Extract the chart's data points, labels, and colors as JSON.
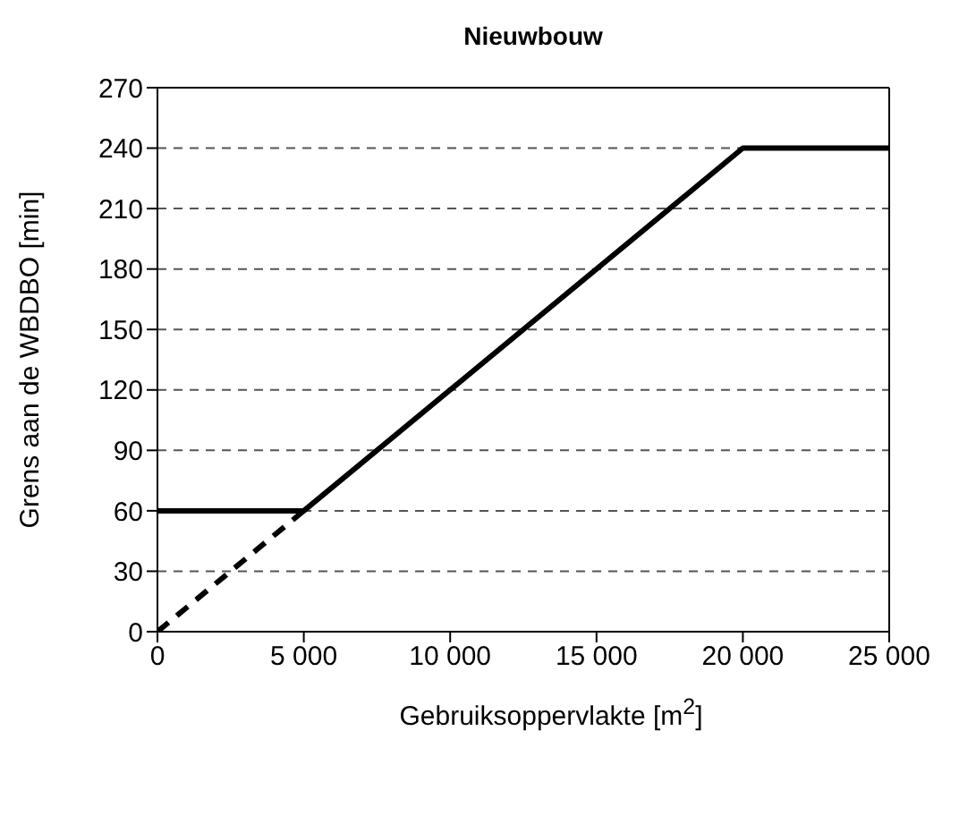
{
  "chart_data": {
    "type": "line",
    "title": "Nieuwbouw",
    "xlabel": "Gebruiksoppervlakte [m$^{2}$]",
    "ylabel": "Grens aan de WBDBO [min]",
    "series": [
      {
        "color": "#000000",
        "x": [
          0,
          5000,
          20000,
          25000
        ],
        "values": [
          60,
          60,
          240,
          240
        ],
        "line_style": "solid"
      },
      {
        "color": "#000000",
        "x": [
          0,
          5000
        ],
        "values": [
          0,
          60
        ],
        "line_style": "dashed"
      }
    ],
    "xlim": [
      0,
      25000
    ],
    "xticks": [
      0,
      {
        "value": 5000,
        "label": "5 000"
      },
      {
        "value": 10000,
        "label": "10 000"
      },
      {
        "value": 15000,
        "label": "15 000"
      },
      {
        "value": 20000,
        "label": "20 000"
      },
      {
        "value": 25000,
        "label": "25 000"
      }
    ],
    "ylim": [
      0,
      270
    ],
    "yticks": [
      0,
      30,
      60,
      90,
      120,
      150,
      180,
      210,
      240,
      270
    ],
    "grid": "y",
    "legend": false,
    "marker": "none"
  }
}
